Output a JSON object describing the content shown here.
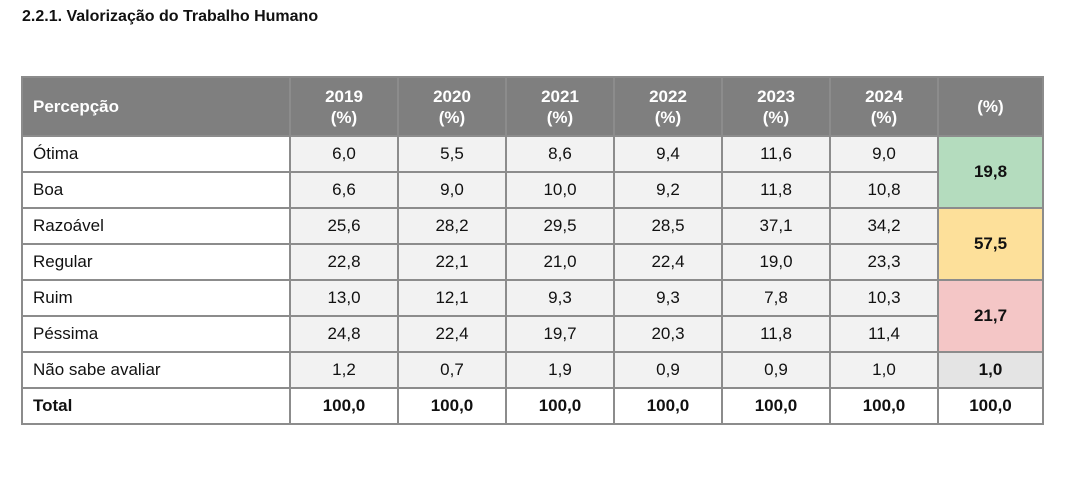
{
  "title": "2.2.1. Valorização do Trabalho Humano",
  "header": {
    "percepcao": "Percepção",
    "years": [
      {
        "year": "2019",
        "unit": "(%)"
      },
      {
        "year": "2020",
        "unit": "(%)"
      },
      {
        "year": "2021",
        "unit": "(%)"
      },
      {
        "year": "2022",
        "unit": "(%)"
      },
      {
        "year": "2023",
        "unit": "(%)"
      },
      {
        "year": "2024",
        "unit": "(%)"
      }
    ],
    "pct": "(%)"
  },
  "rows": [
    {
      "label": "Ótima",
      "values": [
        "6,0",
        "5,5",
        "8,6",
        "9,4",
        "11,6",
        "9,0"
      ]
    },
    {
      "label": "Boa",
      "values": [
        "6,6",
        "9,0",
        "10,0",
        "9,2",
        "11,8",
        "10,8"
      ]
    },
    {
      "label": "Razoável",
      "values": [
        "25,6",
        "28,2",
        "29,5",
        "28,5",
        "37,1",
        "34,2"
      ]
    },
    {
      "label": "Regular",
      "values": [
        "22,8",
        "22,1",
        "21,0",
        "22,4",
        "19,0",
        "23,3"
      ]
    },
    {
      "label": "Ruim",
      "values": [
        "13,0",
        "12,1",
        "9,3",
        "9,3",
        "7,8",
        "10,3"
      ]
    },
    {
      "label": "Péssima",
      "values": [
        "24,8",
        "22,4",
        "19,7",
        "20,3",
        "11,8",
        "11,4"
      ]
    },
    {
      "label": "Não sabe avaliar",
      "values": [
        "1,2",
        "0,7",
        "1,9",
        "0,9",
        "0,9",
        "1,0"
      ]
    }
  ],
  "groups": [
    {
      "value": "19,8",
      "color": "#b4dcbe"
    },
    {
      "value": "57,5",
      "color": "#fde09a"
    },
    {
      "value": "21,7",
      "color": "#f4c6c6"
    },
    {
      "value": "1,0",
      "color": "#e4e4e4"
    }
  ],
  "total": {
    "label": "Total",
    "values": [
      "100,0",
      "100,0",
      "100,0",
      "100,0",
      "100,0",
      "100,0"
    ],
    "pct": "100,0"
  }
}
